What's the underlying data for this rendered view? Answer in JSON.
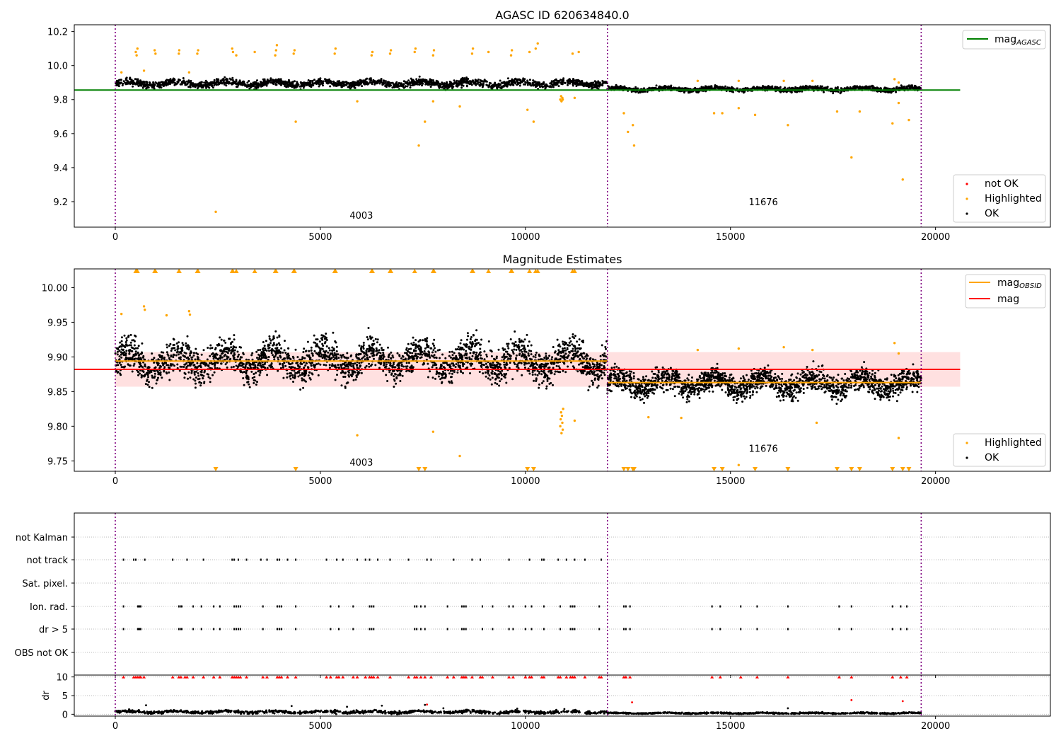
{
  "chart_data": [
    {
      "type": "scatter",
      "title": "AGASC ID 620634840.0",
      "xlabel": "",
      "ylabel": "",
      "xlim": [
        -1000,
        22800
      ],
      "ylim": [
        9.05,
        10.24
      ],
      "xticks": [
        0,
        5000,
        10000,
        15000,
        20000
      ],
      "xtick_labels": [
        "0",
        "5000",
        "10000",
        "15000",
        "20000"
      ],
      "yticks": [
        9.2,
        9.4,
        9.6,
        9.8,
        10.0,
        10.2
      ],
      "ytick_labels": [
        "9.2",
        "9.4",
        "9.6",
        "9.8",
        "10.0",
        "10.2"
      ],
      "grid": false,
      "obsid_boundaries": [
        0,
        12000,
        19650
      ],
      "obsid_labels": [
        {
          "text": "4003",
          "x": 6000,
          "y": 9.1
        },
        {
          "text": "11676",
          "x": 15800,
          "y": 9.18
        }
      ],
      "legend_top": {
        "placement": "top-right",
        "entries": [
          {
            "label": "mag",
            "sub": "AGASC",
            "color": "#008000"
          }
        ]
      },
      "legend_bottom": {
        "placement": "bottom-right",
        "entries": [
          {
            "label": "not OK",
            "color": "#ff0000"
          },
          {
            "label": "Highlighted",
            "color": "#ffa500"
          },
          {
            "label": "OK",
            "color": "#000000"
          }
        ]
      },
      "reference_lines": [
        {
          "name": "mag_AGASC",
          "y": 9.856,
          "x": [
            -1000,
            20600
          ],
          "color": "#008000"
        }
      ],
      "ok_bands": [
        {
          "x": [
            0,
            12000
          ],
          "center": 9.895,
          "spread": 0.018,
          "color": "#000000"
        },
        {
          "x": [
            12000,
            19650
          ],
          "center": 9.862,
          "spread": 0.012,
          "color": "#000000"
        }
      ],
      "highlighted": [
        [
          500,
          10.08
        ],
        [
          520,
          10.06
        ],
        [
          540,
          10.1
        ],
        [
          960,
          10.09
        ],
        [
          980,
          10.07
        ],
        [
          1550,
          10.07
        ],
        [
          1560,
          10.09
        ],
        [
          2000,
          10.07
        ],
        [
          2020,
          10.09
        ],
        [
          2850,
          10.1
        ],
        [
          2870,
          10.08
        ],
        [
          2950,
          10.06
        ],
        [
          3400,
          10.08
        ],
        [
          3900,
          10.06
        ],
        [
          3920,
          10.09
        ],
        [
          3940,
          10.12
        ],
        [
          4350,
          10.07
        ],
        [
          4370,
          10.09
        ],
        [
          5350,
          10.07
        ],
        [
          5370,
          10.1
        ],
        [
          6250,
          10.06
        ],
        [
          6270,
          10.08
        ],
        [
          6700,
          10.07
        ],
        [
          6720,
          10.09
        ],
        [
          7300,
          10.08
        ],
        [
          7320,
          10.1
        ],
        [
          7750,
          10.06
        ],
        [
          7770,
          10.09
        ],
        [
          8700,
          10.07
        ],
        [
          8720,
          10.1
        ],
        [
          9100,
          10.08
        ],
        [
          9650,
          10.06
        ],
        [
          9670,
          10.09
        ],
        [
          10100,
          10.08
        ],
        [
          10250,
          10.1
        ],
        [
          10300,
          10.13
        ],
        [
          11150,
          10.07
        ],
        [
          11300,
          10.08
        ],
        [
          10850,
          9.8
        ],
        [
          10870,
          9.82
        ],
        [
          10880,
          9.79
        ],
        [
          10900,
          9.81
        ],
        [
          10910,
          9.8
        ],
        [
          2450,
          9.14
        ],
        [
          4400,
          9.67
        ],
        [
          5900,
          9.79
        ],
        [
          7400,
          9.53
        ],
        [
          7550,
          9.67
        ],
        [
          7750,
          9.79
        ],
        [
          8400,
          9.76
        ],
        [
          10050,
          9.74
        ],
        [
          10200,
          9.67
        ],
        [
          11200,
          9.81
        ],
        [
          12400,
          9.72
        ],
        [
          12500,
          9.61
        ],
        [
          12620,
          9.65
        ],
        [
          12650,
          9.53
        ],
        [
          14600,
          9.72
        ],
        [
          14800,
          9.72
        ],
        [
          15200,
          9.75
        ],
        [
          15600,
          9.71
        ],
        [
          16400,
          9.65
        ],
        [
          17600,
          9.73
        ],
        [
          17950,
          9.46
        ],
        [
          18150,
          9.73
        ],
        [
          18950,
          9.66
        ],
        [
          19100,
          9.78
        ],
        [
          19200,
          9.33
        ],
        [
          19350,
          9.68
        ],
        [
          150,
          9.96
        ],
        [
          700,
          9.97
        ],
        [
          1800,
          9.96
        ],
        [
          14200,
          9.91
        ],
        [
          15200,
          9.91
        ],
        [
          16300,
          9.91
        ],
        [
          17000,
          9.91
        ],
        [
          19000,
          9.92
        ],
        [
          19100,
          9.9
        ]
      ]
    },
    {
      "type": "scatter",
      "title": "Magnitude Estimates",
      "xlabel": "",
      "ylabel": "",
      "xlim": [
        -1000,
        22800
      ],
      "ylim": [
        9.735,
        10.027
      ],
      "xticks": [
        0,
        5000,
        10000,
        15000,
        20000
      ],
      "xtick_labels": [
        "0",
        "5000",
        "10000",
        "15000",
        "20000"
      ],
      "yticks": [
        9.75,
        9.8,
        9.85,
        9.9,
        9.95,
        10.0
      ],
      "ytick_labels": [
        "9.75",
        "9.80",
        "9.85",
        "9.90",
        "9.95",
        "10.00"
      ],
      "grid": false,
      "obsid_boundaries": [
        0,
        12000,
        19650
      ],
      "obsid_labels": [
        {
          "text": "4003",
          "x": 6000,
          "y": 9.743
        },
        {
          "text": "11676",
          "x": 15800,
          "y": 9.763
        }
      ],
      "legend_top": {
        "placement": "top-right",
        "entries": [
          {
            "label": "mag",
            "sub": "OBSID",
            "color": "#ffa500"
          },
          {
            "label": "mag",
            "sub": "",
            "color": "#ff0000"
          }
        ]
      },
      "legend_bottom": {
        "placement": "bottom-right",
        "entries": [
          {
            "label": "Highlighted",
            "color": "#ffa500"
          },
          {
            "label": "OK",
            "color": "#000000"
          }
        ]
      },
      "reference_lines": [
        {
          "name": "mag",
          "y": 9.882,
          "x": [
            -1000,
            20600
          ],
          "color": "#ff0000"
        },
        {
          "name": "mag_OBSID 4003",
          "y": 9.894,
          "x": [
            0,
            12000
          ],
          "color": "#ffa500"
        },
        {
          "name": "mag_OBSID 11676",
          "y": 9.863,
          "x": [
            12000,
            19650
          ],
          "color": "#ffa500"
        }
      ],
      "shaded_band": {
        "y": [
          9.857,
          9.907
        ],
        "x": [
          0,
          20600
        ],
        "color": "#ff0000"
      },
      "ok_bands": [
        {
          "x": [
            0,
            12000
          ],
          "center": 9.895,
          "spread": 0.022,
          "color": "#000000"
        },
        {
          "x": [
            12000,
            19650
          ],
          "center": 9.862,
          "spread": 0.015,
          "color": "#000000"
        }
      ],
      "highlighted": [
        [
          150,
          9.962
        ],
        [
          700,
          9.973
        ],
        [
          720,
          9.968
        ],
        [
          1800,
          9.966
        ],
        [
          1820,
          9.961
        ],
        [
          1250,
          9.96
        ],
        [
          10850,
          9.8
        ],
        [
          10860,
          9.81
        ],
        [
          10870,
          9.82
        ],
        [
          10880,
          9.79
        ],
        [
          10890,
          9.815
        ],
        [
          10900,
          9.805
        ],
        [
          10910,
          9.795
        ],
        [
          10920,
          9.825
        ],
        [
          11200,
          9.808
        ],
        [
          5900,
          9.787
        ],
        [
          7750,
          9.792
        ],
        [
          8400,
          9.757
        ],
        [
          15200,
          9.744
        ],
        [
          19100,
          9.783
        ],
        [
          14200,
          9.91
        ],
        [
          15200,
          9.912
        ],
        [
          16300,
          9.914
        ],
        [
          17000,
          9.91
        ],
        [
          19000,
          9.92
        ],
        [
          19100,
          9.905
        ],
        [
          13000,
          9.813
        ],
        [
          13800,
          9.812
        ],
        [
          17100,
          9.805
        ]
      ],
      "off_scale_high": [
        500,
        520,
        540,
        960,
        980,
        1550,
        1560,
        2000,
        2020,
        2850,
        2870,
        2950,
        3400,
        3900,
        3920,
        4350,
        4370,
        5350,
        5370,
        6250,
        6270,
        6700,
        6720,
        7300,
        7750,
        7770,
        8700,
        8720,
        9100,
        9650,
        9670,
        10100,
        10250,
        10300,
        11150,
        11200
      ],
      "off_scale_low": [
        2450,
        4400,
        7400,
        7550,
        10050,
        10200,
        12400,
        12500,
        12620,
        12650,
        14600,
        14800,
        15600,
        16400,
        17600,
        17950,
        18150,
        18950,
        19200,
        19350
      ]
    },
    {
      "type": "scatter",
      "title": "",
      "xlabel": "",
      "ylabel": "",
      "xlim": [
        -1000,
        22800
      ],
      "xticks": [
        0,
        5000,
        10000,
        15000,
        20000
      ],
      "obsid_boundaries": [
        0,
        12000,
        19650
      ],
      "categories": [
        "not Kalman",
        "not track",
        "Sat. pixel.",
        "Ion. rad.",
        "dr > 5",
        "OBS not OK"
      ],
      "flag_points": {
        "not Kalman": [],
        "not track": [
          200,
          450,
          500,
          720,
          1400,
          1750,
          2150,
          2850,
          2900,
          3000,
          3200,
          3550,
          3700,
          3950,
          4000,
          4200,
          4400,
          5150,
          5400,
          5550,
          5900,
          6100,
          6200,
          6400,
          6700,
          7150,
          7600,
          7700,
          8250,
          8700,
          8900,
          9600,
          10100,
          10400,
          10450,
          10800,
          11000,
          11200,
          11450,
          11850
        ],
        "Sat. pixel.": [],
        "Ion. rad.": [
          200,
          550,
          570,
          600,
          620,
          1550,
          1600,
          1620,
          1900,
          2100,
          2400,
          2550,
          2900,
          2950,
          3000,
          3050,
          3600,
          3950,
          4000,
          4050,
          4400,
          5250,
          5450,
          5800,
          6200,
          6250,
          6300,
          7300,
          7350,
          7450,
          7550,
          8100,
          8450,
          8500,
          8550,
          8950,
          9200,
          9600,
          9700,
          10000,
          10150,
          10450,
          10850,
          11100,
          11150,
          11200,
          11800,
          12400,
          12450,
          12550,
          14550,
          14750,
          15250,
          15650,
          16400,
          17650,
          17950,
          18950,
          19150,
          19300
        ],
        "dr > 5": [
          200,
          550,
          570,
          600,
          620,
          1550,
          1600,
          1620,
          1900,
          2100,
          2400,
          2550,
          2900,
          2950,
          3000,
          3050,
          3600,
          3950,
          4000,
          4050,
          4400,
          5250,
          5450,
          5800,
          6200,
          6250,
          6300,
          7300,
          7350,
          7450,
          7550,
          8100,
          8450,
          8500,
          8550,
          8950,
          9200,
          9600,
          9700,
          10000,
          10150,
          10450,
          10850,
          11100,
          11150,
          11200,
          11800,
          12400,
          12450,
          12550,
          14550,
          14750,
          15250,
          15650,
          16400,
          17650,
          17950,
          18950,
          19150,
          19300
        ],
        "OBS not OK": []
      }
    },
    {
      "type": "scatter",
      "title": "",
      "xlabel": "",
      "ylabel": "dr",
      "xlim": [
        -1000,
        22800
      ],
      "ylim": [
        -0.5,
        10.5
      ],
      "xticks": [
        0,
        5000,
        10000,
        15000,
        20000
      ],
      "xtick_labels": [
        "0",
        "5000",
        "10000",
        "15000",
        "20000"
      ],
      "yticks": [
        0,
        5,
        10
      ],
      "ytick_labels": [
        "0",
        "5",
        "10"
      ],
      "grid": true,
      "obsid_boundaries": [
        0,
        12000,
        19650
      ],
      "ok_bands": [
        {
          "x": [
            0,
            12000
          ],
          "center": 0.6,
          "spread": 0.35,
          "color": "#000000"
        },
        {
          "x": [
            12000,
            19650
          ],
          "center": 0.3,
          "spread": 0.15,
          "color": "#000000"
        }
      ],
      "not_ok_capped": [
        200,
        450,
        500,
        550,
        600,
        620,
        700,
        1400,
        1550,
        1600,
        1700,
        1750,
        1900,
        2150,
        2400,
        2550,
        2850,
        2900,
        2950,
        3000,
        3050,
        3200,
        3600,
        3700,
        3950,
        4000,
        4050,
        4200,
        4400,
        5150,
        5250,
        5400,
        5450,
        5550,
        5800,
        5900,
        6100,
        6200,
        6250,
        6300,
        6400,
        6700,
        7150,
        7300,
        7350,
        7450,
        7550,
        7700,
        8100,
        8250,
        8450,
        8500,
        8550,
        8700,
        8900,
        8950,
        9200,
        9600,
        9700,
        10000,
        10100,
        10150,
        10400,
        10450,
        10800,
        10850,
        11000,
        11100,
        11150,
        11200,
        11450,
        11800,
        11850,
        12400,
        12450,
        12550,
        14550,
        14750,
        15250,
        15650,
        16400,
        17650,
        17950,
        18950,
        19150,
        19300
      ],
      "not_ok_values": [
        [
          7600,
          2.6
        ],
        [
          12600,
          3.2
        ],
        [
          17950,
          3.8
        ],
        [
          19200,
          3.5
        ]
      ],
      "ok_outliers": [
        [
          750,
          2.4
        ],
        [
          4300,
          2.2
        ],
        [
          5650,
          2.0
        ],
        [
          6500,
          2.3
        ],
        [
          7550,
          2.5
        ],
        [
          8000,
          1.6
        ],
        [
          9800,
          1.5
        ],
        [
          10950,
          1.4
        ],
        [
          16400,
          1.6
        ]
      ]
    }
  ]
}
